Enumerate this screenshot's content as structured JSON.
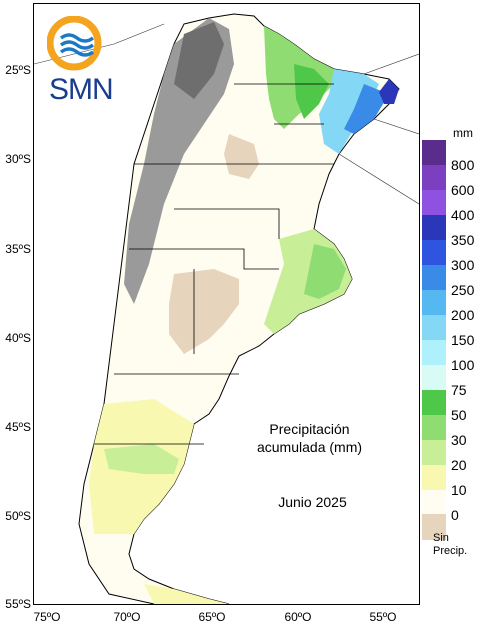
{
  "logo": {
    "text": "SMN"
  },
  "overlay": {
    "title_line1": "Precipitación",
    "title_line2": "acumulada (mm)",
    "date": "Junio 2025"
  },
  "axes": {
    "latitudes": [
      "25ºS",
      "30ºS",
      "35ºS",
      "40ºS",
      "45ºS",
      "50ºS",
      "55ºS"
    ],
    "longitudes": [
      "75ºO",
      "70ºO",
      "65ºO",
      "60ºO",
      "55ºO"
    ]
  },
  "legend": {
    "unit": "mm",
    "levels": [
      {
        "label": "800",
        "color": "#5a2d8c"
      },
      {
        "label": "600",
        "color": "#7b3fbf"
      },
      {
        "label": "400",
        "color": "#8f52e0"
      },
      {
        "label": "350",
        "color": "#2a37b8"
      },
      {
        "label": "300",
        "color": "#2f55e0"
      },
      {
        "label": "250",
        "color": "#3a8be8"
      },
      {
        "label": "200",
        "color": "#56b8f0"
      },
      {
        "label": "150",
        "color": "#84d8f6"
      },
      {
        "label": "100",
        "color": "#aef0fb"
      },
      {
        "label": "75",
        "color": "#d8fbf6"
      },
      {
        "label": "50",
        "color": "#4fc84a"
      },
      {
        "label": "30",
        "color": "#8fdc72"
      },
      {
        "label": "20",
        "color": "#c9ee98"
      },
      {
        "label": "10",
        "color": "#f8f8b0"
      },
      {
        "label": "0",
        "color": "#fffdf2"
      }
    ],
    "no_precip": {
      "line1": "Sin",
      "line2": "Precip.",
      "color": "#e6d4bd"
    }
  }
}
